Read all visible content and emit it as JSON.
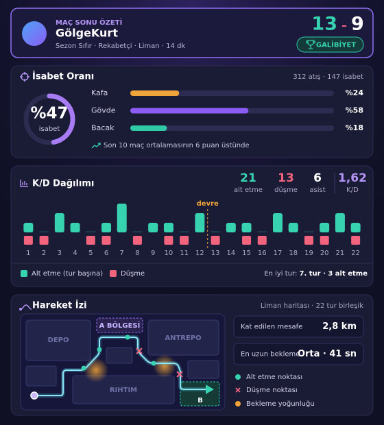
{
  "header": {
    "kicker": "MAÇ SONU ÖZETİ",
    "player": "GölgeKurt",
    "meta": "Sezon Sıfır · Rekabetçi · Liman · 14 dk",
    "score_team": "13",
    "score_separator": "–",
    "score_opponent": "9",
    "result": "GALİBİYET"
  },
  "accuracy": {
    "title": "İsabet Oranı",
    "summary": "312 atış · 147 isabet",
    "overall": {
      "value": 47,
      "label": "%47",
      "caption": "isabet",
      "color": "#a77bf3"
    },
    "parts": [
      {
        "name": "Kafa",
        "value": 24,
        "label": "%24",
        "color": "#f0a43a"
      },
      {
        "name": "Gövde",
        "value": 58,
        "label": "%58",
        "color": "#8b5cf6"
      },
      {
        "name": "Bacak",
        "value": 18,
        "label": "%18",
        "color": "#2fc9a8"
      }
    ],
    "trend": "Son 10 maç ortalamasının 6 puan üstünde"
  },
  "kd": {
    "title": "K/D Dağılımı",
    "stats": [
      {
        "value": "21",
        "label": "alt etme",
        "color": "#37d3b0"
      },
      {
        "value": "13",
        "label": "düşme",
        "color": "#f2647d"
      },
      {
        "value": "6",
        "label": "asist",
        "color": "#ffffff"
      },
      {
        "value": "1,62",
        "label": "K/D",
        "color": "#b394f5"
      }
    ],
    "rounds": [
      "1",
      "2",
      "3",
      "4",
      "5",
      "6",
      "7",
      "8",
      "9",
      "10",
      "11",
      "12",
      "13",
      "14",
      "15",
      "16",
      "17",
      "18",
      "19",
      "20",
      "21",
      "22"
    ],
    "series": [
      {
        "name": "Alt etme (tur başına)",
        "color": "#37d3b0",
        "values": [
          1,
          0,
          2,
          1,
          0,
          1,
          3,
          0,
          1,
          1,
          0,
          2,
          0,
          1,
          1,
          0,
          2,
          1,
          0,
          1,
          2,
          1
        ]
      },
      {
        "name": "Düşme",
        "color": "#f2647d",
        "values": [
          1,
          1,
          0,
          0,
          1,
          1,
          0,
          1,
          0,
          1,
          1,
          0,
          1,
          0,
          1,
          1,
          0,
          0,
          1,
          1,
          0,
          1
        ]
      }
    ],
    "half": {
      "label": "devre",
      "after_round": 12
    },
    "best_prefix": "En iyi tur:",
    "best_value": "7. tur · 3 alt etme"
  },
  "movement": {
    "title": "Hareket İzi",
    "summary": "Liman haritası · 22 tur birleşik",
    "zones": {
      "depo": "DEPO",
      "a": "A BÖLGESİ",
      "antrepo": "ANTREPO",
      "rihtim": "RIHTIM",
      "b": "B"
    },
    "stats": [
      {
        "label": "Kat edilen mesafe",
        "value": "2,8 km"
      },
      {
        "label": "En uzun bekleme",
        "value": "Orta · 41 sn"
      }
    ],
    "legend": [
      "Alt etme noktası",
      "Düşme noktası",
      "Bekleme yoğunluğu"
    ]
  }
}
